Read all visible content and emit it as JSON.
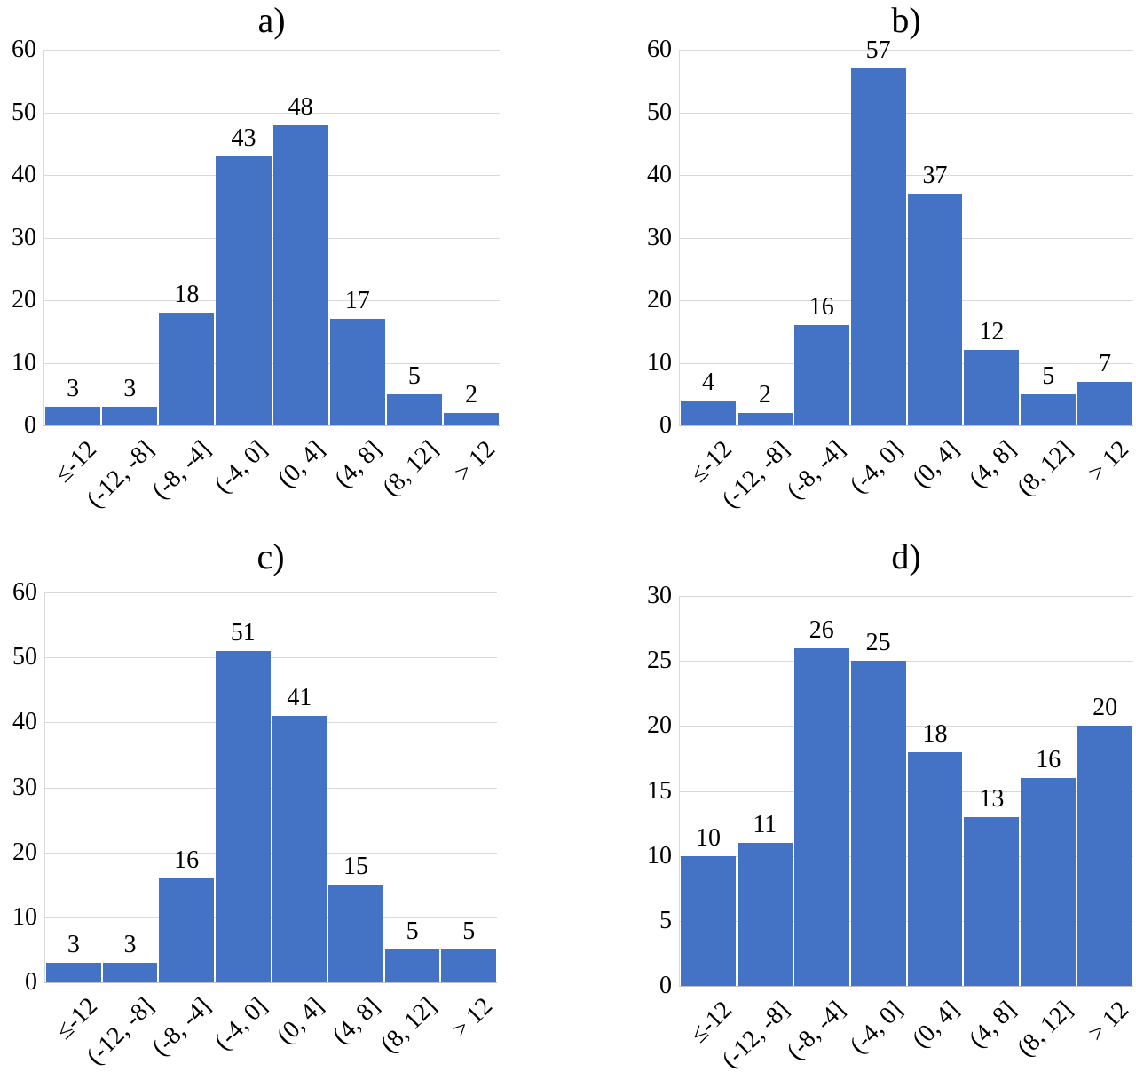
{
  "colors": {
    "bar": "#4472C4",
    "gridline": "#D9D9D9",
    "axis": "#BFBFBF",
    "text": "#000000"
  },
  "chart_data": [
    {
      "type": "bar",
      "title": "a)",
      "categories": [
        "≤-12",
        "(-12, -8]",
        "(-8, -4]",
        "(-4, 0]",
        "(0, 4]",
        "(4, 8]",
        "(8, 12]",
        "> 12"
      ],
      "values": [
        3,
        3,
        18,
        43,
        48,
        17,
        5,
        2
      ],
      "ylim": [
        0,
        60
      ],
      "ytick_step": 10,
      "grid": true,
      "data_labels": true,
      "legend": "none"
    },
    {
      "type": "bar",
      "title": "b)",
      "categories": [
        "≤-12",
        "(-12, -8]",
        "(-8, -4]",
        "(-4, 0]",
        "(0, 4]",
        "(4, 8]",
        "(8, 12]",
        "> 12"
      ],
      "values": [
        4,
        2,
        16,
        57,
        37,
        12,
        5,
        7
      ],
      "ylim": [
        0,
        60
      ],
      "ytick_step": 10,
      "grid": true,
      "data_labels": true,
      "legend": "none"
    },
    {
      "type": "bar",
      "title": "c)",
      "categories": [
        "≤-12",
        "(-12, -8]",
        "(-8, -4]",
        "(-4, 0]",
        "(0, 4]",
        "(4, 8]",
        "(8, 12]",
        "> 12"
      ],
      "values": [
        3,
        3,
        16,
        51,
        41,
        15,
        5,
        5
      ],
      "ylim": [
        0,
        60
      ],
      "ytick_step": 10,
      "grid": true,
      "data_labels": true,
      "legend": "none"
    },
    {
      "type": "bar",
      "title": "d)",
      "categories": [
        "≤-12",
        "(-12, -8]",
        "(-8, -4]",
        "(-4, 0]",
        "(0, 4]",
        "(4, 8]",
        "(8, 12]",
        "> 12"
      ],
      "values": [
        10,
        11,
        26,
        25,
        18,
        13,
        16,
        20
      ],
      "ylim": [
        0,
        30
      ],
      "ytick_step": 5,
      "grid": true,
      "data_labels": true,
      "legend": "none"
    }
  ]
}
